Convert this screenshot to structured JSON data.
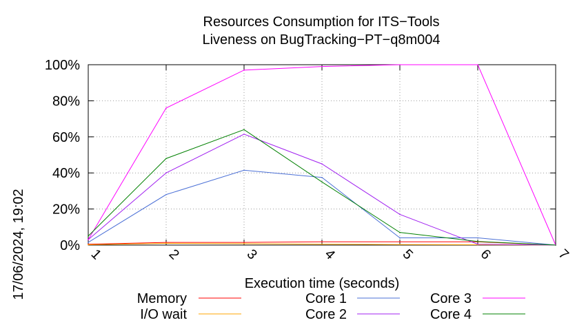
{
  "chart_data": {
    "type": "line",
    "title": "Resources Consumption for ITS−Tools",
    "subtitle": "Liveness on BugTracking−PT−q8m004",
    "xlabel": "Execution time (seconds)",
    "ylabel": "",
    "side_label": "17/06/2024, 19:02",
    "x": [
      1,
      2,
      3,
      4,
      5,
      6,
      7
    ],
    "xlim": [
      1,
      7
    ],
    "ylim": [
      0,
      100
    ],
    "x_ticks": [
      "1",
      "2",
      "3",
      "4",
      "5",
      "6",
      "7"
    ],
    "y_ticks": [
      "0%",
      "20%",
      "40%",
      "60%",
      "80%",
      "100%"
    ],
    "grid": true,
    "legend_position": "bottom",
    "series": [
      {
        "name": "Memory",
        "color": "#ff0000",
        "values": [
          0.5,
          1.5,
          1.5,
          1.8,
          1.8,
          1.8,
          0
        ]
      },
      {
        "name": "I/O wait",
        "color": "#ffa500",
        "values": [
          0.2,
          1.0,
          0.8,
          0.5,
          0.3,
          0.2,
          0
        ]
      },
      {
        "name": "Core 1",
        "color": "#4a6fd6",
        "values": [
          1.5,
          28,
          41.5,
          37.5,
          4,
          4,
          0
        ]
      },
      {
        "name": "Core 2",
        "color": "#a020f0",
        "values": [
          3,
          40,
          61.5,
          45,
          17,
          0.5,
          0
        ]
      },
      {
        "name": "Core 3",
        "color": "#ff00ff",
        "values": [
          3,
          76,
          97,
          99,
          100,
          100,
          0
        ]
      },
      {
        "name": "Core 4",
        "color": "#008000",
        "values": [
          5,
          48,
          64,
          35,
          7,
          2,
          0
        ]
      }
    ]
  }
}
